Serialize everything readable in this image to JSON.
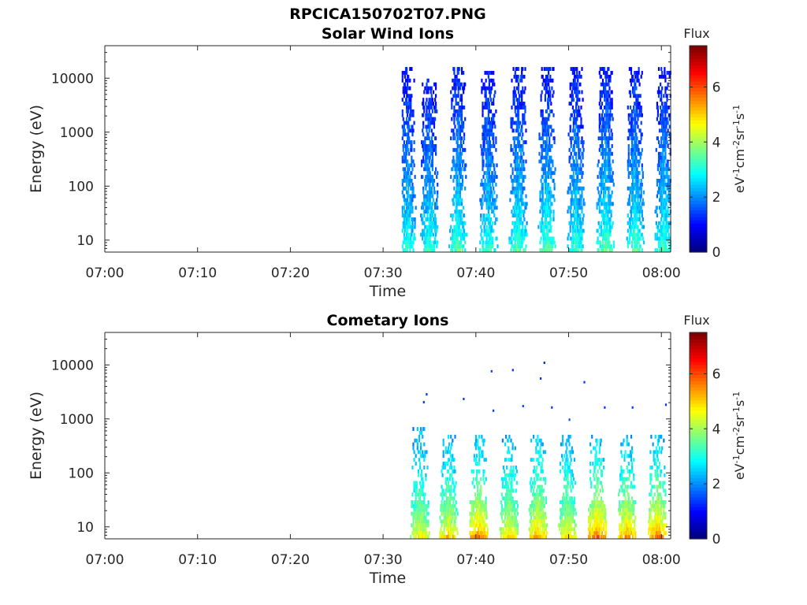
{
  "figure": {
    "title": "RPCICA150702T07.PNG"
  },
  "colormap": "jet",
  "chart_data": [
    {
      "type": "heatmap",
      "title": "Solar Wind Ions",
      "xlabel": "Time",
      "ylabel": "Energy (eV)",
      "xticks": [
        "07:00",
        "07:10",
        "07:20",
        "07:30",
        "07:40",
        "07:50",
        "08:00"
      ],
      "xrange_min": [
        0,
        61
      ],
      "yticks": [
        "10",
        "100",
        "1000",
        "10000"
      ],
      "yscale": "log",
      "ylim": [
        6,
        40000
      ],
      "colorbar": {
        "label": "Flux",
        "unit": "eV-1cm-2sr-1s-1",
        "ticks": [
          "0",
          "2",
          "4",
          "6"
        ],
        "range": [
          0,
          7.5
        ]
      },
      "data_start_min": 32,
      "scan_period_min": 3.2,
      "bursts": [
        {
          "t": 32.5,
          "emin": 6,
          "emax": 14000,
          "flux_low": 3.3,
          "flux_high": 1.2
        },
        {
          "t": 34.9,
          "emin": 6,
          "emax": 9000,
          "flux_low": 3.4,
          "flux_high": 1.2
        },
        {
          "t": 38.0,
          "emin": 6,
          "emax": 14000,
          "flux_low": 3.6,
          "flux_high": 1.2
        },
        {
          "t": 41.3,
          "emin": 6,
          "emax": 13000,
          "flux_low": 3.4,
          "flux_high": 1.2
        },
        {
          "t": 44.5,
          "emin": 6,
          "emax": 14000,
          "flux_low": 3.6,
          "flux_high": 1.2
        },
        {
          "t": 47.6,
          "emin": 6,
          "emax": 14000,
          "flux_low": 3.7,
          "flux_high": 1.2
        },
        {
          "t": 50.7,
          "emin": 6,
          "emax": 14000,
          "flux_low": 3.4,
          "flux_high": 1.2
        },
        {
          "t": 53.9,
          "emin": 6,
          "emax": 14000,
          "flux_low": 3.7,
          "flux_high": 1.2
        },
        {
          "t": 57.1,
          "emin": 6,
          "emax": 14000,
          "flux_low": 3.6,
          "flux_high": 1.2
        },
        {
          "t": 60.2,
          "emin": 6,
          "emax": 14000,
          "flux_low": 3.5,
          "flux_high": 1.2
        }
      ]
    },
    {
      "type": "heatmap",
      "title": "Cometary Ions",
      "xlabel": "Time",
      "ylabel": "Energy (eV)",
      "xticks": [
        "07:00",
        "07:10",
        "07:20",
        "07:30",
        "07:40",
        "07:50",
        "08:00"
      ],
      "xrange_min": [
        0,
        61
      ],
      "yticks": [
        "10",
        "100",
        "1000",
        "10000"
      ],
      "yscale": "log",
      "ylim": [
        6,
        40000
      ],
      "colorbar": {
        "label": "Flux",
        "unit": "eV-1cm-2sr-1s-1",
        "ticks": [
          "0",
          "2",
          "4",
          "6"
        ],
        "range": [
          0,
          7.5
        ]
      },
      "data_start_min": 32,
      "scan_period_min": 3.2,
      "bursts": [
        {
          "t": 33.9,
          "emin": 6,
          "emax": 600,
          "flux_low": 4.8,
          "flux_high": 2.3
        },
        {
          "t": 37.0,
          "emin": 6,
          "emax": 500,
          "flux_low": 5.2,
          "flux_high": 2.3
        },
        {
          "t": 40.2,
          "emin": 6,
          "emax": 500,
          "flux_low": 5.8,
          "flux_high": 2.4
        },
        {
          "t": 43.5,
          "emin": 6,
          "emax": 500,
          "flux_low": 5.0,
          "flux_high": 2.4
        },
        {
          "t": 46.6,
          "emin": 6,
          "emax": 500,
          "flux_low": 5.4,
          "flux_high": 2.5
        },
        {
          "t": 49.8,
          "emin": 6,
          "emax": 500,
          "flux_low": 5.0,
          "flux_high": 2.4
        },
        {
          "t": 53.0,
          "emin": 6,
          "emax": 500,
          "flux_low": 5.9,
          "flux_high": 2.4
        },
        {
          "t": 56.2,
          "emin": 6,
          "emax": 500,
          "flux_low": 5.6,
          "flux_high": 2.4
        },
        {
          "t": 59.5,
          "emin": 6,
          "emax": 500,
          "flux_low": 5.8,
          "flux_high": 2.4
        }
      ],
      "sparse_points": [
        {
          "t": 34.6,
          "e": 2800,
          "flux": 1.3
        },
        {
          "t": 34.3,
          "e": 2000,
          "flux": 1.3
        },
        {
          "t": 38.6,
          "e": 2300,
          "flux": 1.3
        },
        {
          "t": 41.6,
          "e": 7500,
          "flux": 1.4
        },
        {
          "t": 41.8,
          "e": 1400,
          "flux": 1.4
        },
        {
          "t": 43.9,
          "e": 7900,
          "flux": 1.3
        },
        {
          "t": 45.0,
          "e": 1700,
          "flux": 1.5
        },
        {
          "t": 46.9,
          "e": 5500,
          "flux": 1.3
        },
        {
          "t": 47.3,
          "e": 10800,
          "flux": 1.2
        },
        {
          "t": 48.1,
          "e": 1600,
          "flux": 1.3
        },
        {
          "t": 51.6,
          "e": 4700,
          "flux": 1.3
        },
        {
          "t": 53.8,
          "e": 1600,
          "flux": 1.3
        },
        {
          "t": 56.8,
          "e": 1600,
          "flux": 1.3
        },
        {
          "t": 60.4,
          "e": 1800,
          "flux": 1.3
        },
        {
          "t": 50.0,
          "e": 950,
          "flux": 1.5
        }
      ]
    }
  ]
}
